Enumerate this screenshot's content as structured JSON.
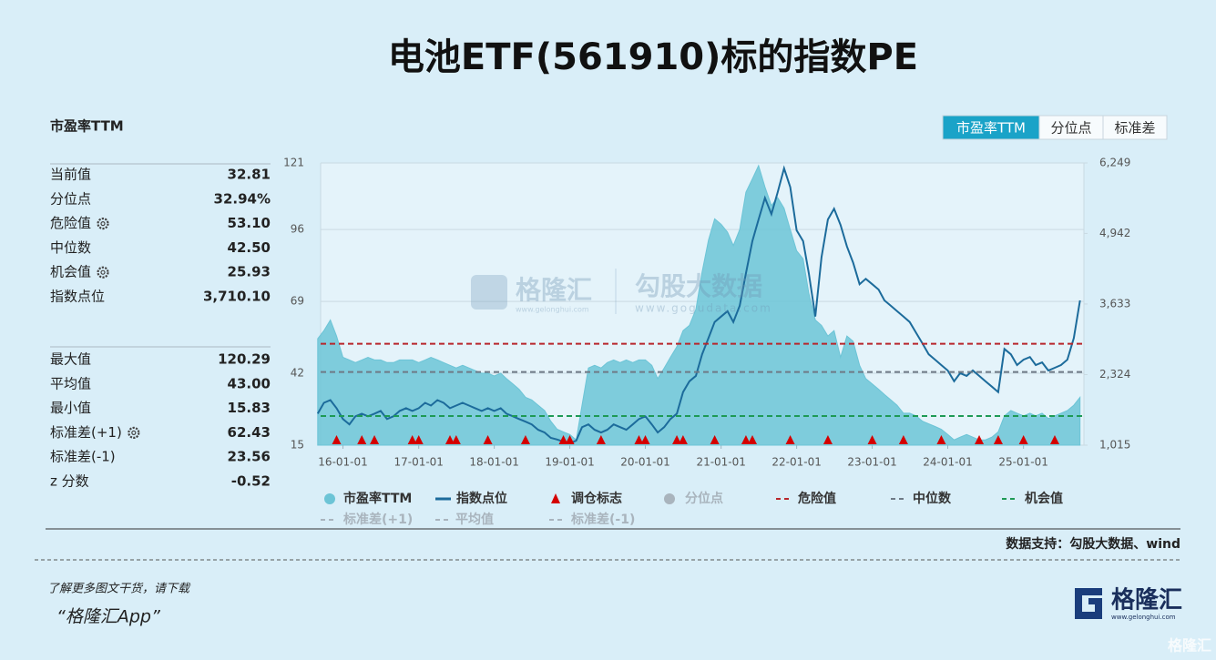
{
  "title": "电池ETF(561910)标的指数PE",
  "tabs": {
    "items": [
      "市盈率TTM",
      "分位点",
      "标准差"
    ],
    "active": 0
  },
  "panel": {
    "title": "市盈率TTM",
    "groups": [
      {
        "labels": [
          "当前值",
          "分位点",
          "危险值",
          "中位数",
          "机会值",
          "指数点位"
        ],
        "values": [
          32.81,
          32.94,
          53.1,
          42.5,
          25.93,
          3710.1
        ],
        "value_labels": [
          "32.81",
          "32.94%",
          "53.10",
          "42.50",
          "25.93",
          "3,710.10"
        ]
      },
      {
        "labels": [
          "最大值",
          "平均值",
          "最小值",
          "标准差(+1)",
          "标准差(-1)",
          "z 分数"
        ],
        "values": [
          120.29,
          43,
          15.83,
          62.43,
          23.56,
          -0.52
        ],
        "value_labels": [
          "120.29",
          "43.00",
          "15.83",
          "62.43",
          "23.56",
          "-0.52"
        ]
      }
    ]
  },
  "chart_data": {
    "type": "area-line",
    "x": [
      "2015-09-01",
      "2015-10-01",
      "2015-11-01",
      "2015-12-01",
      "2016-01-01",
      "2016-02-01",
      "2016-03-01",
      "2016-04-01",
      "2016-05-01",
      "2016-06-01",
      "2016-07-01",
      "2016-08-01",
      "2016-09-01",
      "2016-10-01",
      "2016-11-01",
      "2016-12-01",
      "2017-01-01",
      "2017-02-01",
      "2017-03-01",
      "2017-04-01",
      "2017-05-01",
      "2017-06-01",
      "2017-07-01",
      "2017-08-01",
      "2017-09-01",
      "2017-10-01",
      "2017-11-01",
      "2017-12-01",
      "2018-01-01",
      "2018-02-01",
      "2018-03-01",
      "2018-04-01",
      "2018-05-01",
      "2018-06-01",
      "2018-07-01",
      "2018-08-01",
      "2018-09-01",
      "2018-10-01",
      "2018-11-01",
      "2018-12-01",
      "2019-01-01",
      "2019-02-01",
      "2019-03-01",
      "2019-04-01",
      "2019-05-01",
      "2019-06-01",
      "2019-07-01",
      "2019-08-01",
      "2019-09-01",
      "2019-10-01",
      "2019-11-01",
      "2019-12-01",
      "2020-01-01",
      "2020-02-01",
      "2020-03-01",
      "2020-04-01",
      "2020-05-01",
      "2020-06-01",
      "2020-07-01",
      "2020-08-01",
      "2020-09-01",
      "2020-10-01",
      "2020-11-01",
      "2020-12-01",
      "2021-01-01",
      "2021-02-01",
      "2021-03-01",
      "2021-04-01",
      "2021-05-01",
      "2021-06-01",
      "2021-07-01",
      "2021-08-01",
      "2021-09-01",
      "2021-10-01",
      "2021-11-01",
      "2021-12-01",
      "2022-01-01",
      "2022-02-01",
      "2022-03-01",
      "2022-04-01",
      "2022-05-01",
      "2022-06-01",
      "2022-07-01",
      "2022-08-01",
      "2022-09-01",
      "2022-10-01",
      "2022-11-01",
      "2022-12-01",
      "2023-01-01",
      "2023-02-01",
      "2023-03-01",
      "2023-04-01",
      "2023-05-01",
      "2023-06-01",
      "2023-07-01",
      "2023-08-01",
      "2023-09-01",
      "2023-10-01",
      "2023-11-01",
      "2023-12-01",
      "2024-01-01",
      "2024-02-01",
      "2024-03-01",
      "2024-04-01",
      "2024-05-01",
      "2024-06-01",
      "2024-07-01",
      "2024-08-01",
      "2024-09-01",
      "2024-10-01",
      "2024-11-01",
      "2024-12-01",
      "2025-01-01",
      "2025-02-01",
      "2025-03-01",
      "2025-04-01",
      "2025-05-01",
      "2025-06-01",
      "2025-07-01",
      "2025-08-01",
      "2025-09-01",
      "2025-10-01"
    ],
    "series": [
      {
        "name": "市盈率TTM",
        "color": "#6cc4d6",
        "values": [
          55,
          58,
          62,
          56,
          48,
          47,
          46,
          47,
          48,
          47,
          47,
          46,
          46,
          47,
          47,
          47,
          46,
          47,
          48,
          47,
          46,
          45,
          44,
          45,
          44,
          43,
          42,
          42,
          41,
          42,
          40,
          38,
          36,
          33,
          32,
          30,
          28,
          24,
          21,
          20,
          19,
          17,
          30,
          44,
          45,
          44,
          46,
          47,
          46,
          47,
          46,
          47,
          47,
          45,
          40,
          44,
          48,
          52,
          58,
          60,
          66,
          80,
          92,
          100,
          98,
          95,
          90,
          96,
          110,
          115,
          120,
          112,
          105,
          108,
          104,
          96,
          88,
          85,
          72,
          62,
          60,
          56,
          58,
          48,
          56,
          54,
          45,
          40,
          38,
          36,
          34,
          32,
          30,
          27,
          27,
          26,
          24,
          23,
          22,
          21,
          19,
          17,
          18,
          19,
          18,
          17,
          17,
          18,
          20,
          26,
          28,
          27,
          26,
          27,
          26,
          27,
          25,
          26,
          27,
          28,
          30,
          33
        ]
      },
      {
        "name": "指数点位",
        "color": "#1c6b9b",
        "axis": "y2",
        "values": [
          1600,
          1800,
          1850,
          1700,
          1500,
          1400,
          1550,
          1600,
          1550,
          1600,
          1650,
          1500,
          1550,
          1650,
          1700,
          1650,
          1700,
          1800,
          1750,
          1850,
          1800,
          1700,
          1750,
          1800,
          1750,
          1700,
          1650,
          1700,
          1650,
          1700,
          1600,
          1550,
          1500,
          1450,
          1400,
          1300,
          1250,
          1150,
          1120,
          1080,
          1050,
          1100,
          1350,
          1400,
          1300,
          1250,
          1300,
          1400,
          1350,
          1300,
          1400,
          1500,
          1550,
          1400,
          1250,
          1350,
          1500,
          1600,
          2000,
          2200,
          2300,
          2700,
          3000,
          3300,
          3400,
          3500,
          3300,
          3600,
          4200,
          4800,
          5200,
          5600,
          5300,
          5700,
          6150,
          5800,
          5000,
          4800,
          4200,
          3400,
          4500,
          5200,
          5400,
          5100,
          4700,
          4400,
          4000,
          4100,
          4000,
          3900,
          3700,
          3600,
          3500,
          3400,
          3300,
          3100,
          2900,
          2700,
          2600,
          2500,
          2400,
          2200,
          2350,
          2300,
          2400,
          2300,
          2200,
          2100,
          2000,
          2800,
          2700,
          2500,
          2600,
          2650,
          2500,
          2550,
          2400,
          2450,
          2500,
          2600,
          3000,
          3700
        ]
      }
    ],
    "markers": {
      "name": "调仓标志",
      "color": "#d40000",
      "x": [
        "2015-12-01",
        "2016-04-01",
        "2016-06-01",
        "2016-12-01",
        "2017-01-01",
        "2017-06-01",
        "2017-07-01",
        "2017-12-01",
        "2018-06-01",
        "2018-12-01",
        "2019-01-01",
        "2019-06-01",
        "2019-12-01",
        "2020-01-01",
        "2020-06-01",
        "2020-07-01",
        "2020-12-01",
        "2021-05-01",
        "2021-06-01",
        "2021-12-01",
        "2022-06-01",
        "2023-01-01",
        "2023-06-01",
        "2023-12-01",
        "2024-06-01",
        "2024-09-01",
        "2025-01-01",
        "2025-06-01"
      ]
    },
    "reference_lines": [
      {
        "name": "危险值",
        "color": "#b8262b"
      },
      {
        "name": "中位数",
        "color": "#6f7a86"
      },
      {
        "name": "机会值",
        "color": "#1e9a55"
      }
    ],
    "inactive_legend": {
      "color": "#a9b4bd",
      "names": [
        "分位点",
        "标准差(+1)",
        "平均值",
        "标准差(-1)"
      ]
    },
    "xlim": [
      "2015-09-15",
      "2025-10-20"
    ],
    "xticks": [
      {
        "value": "2016-01-01",
        "label": "16-01-01"
      },
      {
        "value": "2017-01-01",
        "label": "17-01-01"
      },
      {
        "value": "2018-01-01",
        "label": "18-01-01"
      },
      {
        "value": "2019-01-01",
        "label": "19-01-01"
      },
      {
        "value": "2020-01-01",
        "label": "20-01-01"
      },
      {
        "value": "2021-01-01",
        "label": "21-01-01"
      },
      {
        "value": "2022-01-01",
        "label": "22-01-01"
      },
      {
        "value": "2023-01-01",
        "label": "23-01-01"
      },
      {
        "value": "2024-01-01",
        "label": "24-01-01"
      },
      {
        "value": "2025-01-01",
        "label": "25-01-01"
      }
    ],
    "ylim": [
      15,
      121
    ],
    "yticks": [
      15,
      42,
      69,
      96,
      121
    ],
    "y2lim": [
      1015,
      6249
    ],
    "y2ticks": [
      {
        "value": 1015,
        "label": "1,015"
      },
      {
        "value": 2324,
        "label": "2,324"
      },
      {
        "value": 3633,
        "label": "3,633"
      },
      {
        "value": 4942,
        "label": "4,942"
      },
      {
        "value": 6249,
        "label": "6,249"
      }
    ],
    "grid": true
  },
  "source": "数据支持：勾股大数据、wind",
  "footer": {
    "line1": "了解更多图文干货，请下载",
    "line2": "“格隆汇App”"
  },
  "logo": {
    "name": "格隆汇",
    "url": "www.gelonghui.com"
  },
  "watermarks": {
    "brand1": "格隆汇",
    "url1": "www.gelonghui.com",
    "brand2": "勾股大数据",
    "url2": "www.gogudata.com",
    "corner": "格隆汇"
  }
}
